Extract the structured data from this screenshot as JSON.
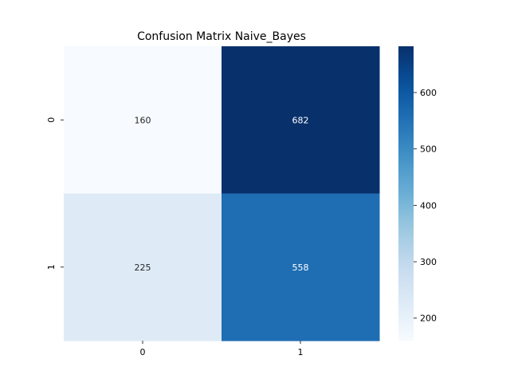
{
  "chart_data": {
    "type": "heatmap",
    "title": "Confusion Matrix Naive_Bayes",
    "xlabel": "",
    "ylabel": "",
    "x_categories": [
      "0",
      "1"
    ],
    "y_categories": [
      "0",
      "1"
    ],
    "values": [
      [
        160,
        682
      ],
      [
        225,
        558
      ]
    ],
    "colormap": "Blues",
    "colorbar": {
      "range": [
        160,
        682
      ],
      "ticks": [
        200,
        300,
        400,
        500,
        600
      ],
      "tick_labels": [
        "200",
        "300",
        "400",
        "500",
        "600"
      ]
    },
    "grid": false,
    "cell_text_colors": {
      "dark_bg": "#ffffff",
      "light_bg": "#262626"
    }
  }
}
